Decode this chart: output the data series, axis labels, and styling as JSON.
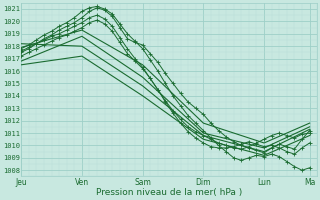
{
  "xlabel": "Pression niveau de la mer( hPa )",
  "bg_color": "#c8e8e0",
  "grid_major_color": "#9ecfc8",
  "grid_minor_color": "#b8ddd8",
  "line_color": "#1a6b30",
  "ylim": [
    1007.5,
    1021.5
  ],
  "yticks": [
    1008,
    1009,
    1010,
    1011,
    1012,
    1013,
    1014,
    1015,
    1016,
    1017,
    1018,
    1019,
    1020,
    1021
  ],
  "xtick_labels": [
    "Jeu",
    "Ven",
    "Sam",
    "Dim",
    "Lun",
    "Ma"
  ],
  "xtick_positions": [
    0,
    24,
    48,
    72,
    96,
    114
  ],
  "xlim": [
    0,
    117
  ],
  "series": [
    {
      "points": [
        [
          0,
          1017.5
        ],
        [
          3,
          1017.8
        ],
        [
          6,
          1018.2
        ],
        [
          9,
          1018.6
        ],
        [
          12,
          1018.9
        ],
        [
          15,
          1019.3
        ],
        [
          18,
          1019.6
        ],
        [
          21,
          1019.9
        ],
        [
          24,
          1020.3
        ],
        [
          27,
          1020.8
        ],
        [
          30,
          1021.1
        ],
        [
          33,
          1020.9
        ],
        [
          36,
          1020.4
        ],
        [
          39,
          1019.5
        ],
        [
          42,
          1018.6
        ],
        [
          45,
          1018.3
        ],
        [
          48,
          1018.1
        ],
        [
          51,
          1017.4
        ],
        [
          54,
          1016.7
        ],
        [
          57,
          1015.8
        ],
        [
          60,
          1015.0
        ],
        [
          63,
          1014.2
        ],
        [
          66,
          1013.5
        ],
        [
          69,
          1013.0
        ],
        [
          72,
          1012.5
        ],
        [
          75,
          1011.8
        ],
        [
          78,
          1011.2
        ],
        [
          81,
          1010.7
        ],
        [
          84,
          1010.3
        ],
        [
          87,
          1010.0
        ],
        [
          90,
          1009.8
        ],
        [
          93,
          1009.6
        ],
        [
          96,
          1009.4
        ],
        [
          99,
          1009.8
        ],
        [
          102,
          1010.1
        ],
        [
          105,
          1009.9
        ],
        [
          108,
          1009.7
        ],
        [
          111,
          1010.5
        ],
        [
          114,
          1011.2
        ]
      ],
      "marker": true
    },
    {
      "points": [
        [
          0,
          1017.8
        ],
        [
          3,
          1018.1
        ],
        [
          6,
          1018.5
        ],
        [
          9,
          1018.9
        ],
        [
          12,
          1019.2
        ],
        [
          15,
          1019.6
        ],
        [
          18,
          1019.9
        ],
        [
          21,
          1020.3
        ],
        [
          24,
          1020.8
        ],
        [
          27,
          1021.1
        ],
        [
          30,
          1021.2
        ],
        [
          33,
          1021.0
        ],
        [
          36,
          1020.6
        ],
        [
          39,
          1019.8
        ],
        [
          42,
          1019.0
        ],
        [
          45,
          1018.4
        ],
        [
          48,
          1017.8
        ],
        [
          51,
          1016.9
        ],
        [
          54,
          1016.0
        ],
        [
          57,
          1015.0
        ],
        [
          60,
          1014.0
        ],
        [
          63,
          1013.2
        ],
        [
          66,
          1012.4
        ],
        [
          69,
          1011.8
        ],
        [
          72,
          1011.2
        ],
        [
          75,
          1010.6
        ],
        [
          78,
          1010.0
        ],
        [
          81,
          1009.5
        ],
        [
          84,
          1009.0
        ],
        [
          87,
          1008.8
        ],
        [
          90,
          1009.0
        ],
        [
          93,
          1009.2
        ],
        [
          96,
          1009.1
        ],
        [
          99,
          1009.3
        ],
        [
          102,
          1009.1
        ],
        [
          105,
          1008.7
        ],
        [
          108,
          1008.3
        ],
        [
          111,
          1008.0
        ],
        [
          114,
          1008.2
        ]
      ],
      "marker": true
    },
    {
      "points": [
        [
          0,
          1017.2
        ],
        [
          3,
          1017.5
        ],
        [
          6,
          1017.8
        ],
        [
          9,
          1018.1
        ],
        [
          12,
          1018.4
        ],
        [
          15,
          1018.7
        ],
        [
          18,
          1018.9
        ],
        [
          21,
          1019.2
        ],
        [
          24,
          1019.5
        ],
        [
          27,
          1019.9
        ],
        [
          30,
          1020.1
        ],
        [
          33,
          1019.8
        ],
        [
          36,
          1019.2
        ],
        [
          39,
          1018.3
        ],
        [
          42,
          1017.4
        ],
        [
          45,
          1016.8
        ],
        [
          48,
          1016.2
        ],
        [
          51,
          1015.4
        ],
        [
          54,
          1014.5
        ],
        [
          57,
          1013.6
        ],
        [
          60,
          1012.8
        ],
        [
          63,
          1012.1
        ],
        [
          66,
          1011.5
        ],
        [
          69,
          1011.1
        ],
        [
          72,
          1010.8
        ],
        [
          75,
          1010.5
        ],
        [
          78,
          1010.2
        ],
        [
          81,
          1010.0
        ],
        [
          84,
          1009.8
        ],
        [
          87,
          1009.7
        ],
        [
          90,
          1009.9
        ],
        [
          93,
          1010.2
        ],
        [
          96,
          1010.5
        ],
        [
          99,
          1010.8
        ],
        [
          102,
          1011.0
        ],
        [
          105,
          1010.8
        ],
        [
          108,
          1010.6
        ],
        [
          111,
          1010.9
        ],
        [
          114,
          1011.0
        ]
      ],
      "marker": true
    },
    {
      "points": [
        [
          0,
          1017.6
        ],
        [
          3,
          1017.9
        ],
        [
          6,
          1018.2
        ],
        [
          9,
          1018.5
        ],
        [
          12,
          1018.8
        ],
        [
          15,
          1019.0
        ],
        [
          18,
          1019.3
        ],
        [
          21,
          1019.6
        ],
        [
          24,
          1019.9
        ],
        [
          27,
          1020.3
        ],
        [
          30,
          1020.5
        ],
        [
          33,
          1020.2
        ],
        [
          36,
          1019.6
        ],
        [
          39,
          1018.7
        ],
        [
          42,
          1017.8
        ],
        [
          45,
          1017.0
        ],
        [
          48,
          1016.3
        ],
        [
          51,
          1015.4
        ],
        [
          54,
          1014.5
        ],
        [
          57,
          1013.5
        ],
        [
          60,
          1012.6
        ],
        [
          63,
          1011.8
        ],
        [
          66,
          1011.1
        ],
        [
          69,
          1010.6
        ],
        [
          72,
          1010.2
        ],
        [
          75,
          1009.9
        ],
        [
          78,
          1009.8
        ],
        [
          81,
          1009.8
        ],
        [
          84,
          1009.9
        ],
        [
          87,
          1010.1
        ],
        [
          90,
          1010.3
        ],
        [
          93,
          1010.1
        ],
        [
          96,
          1009.9
        ],
        [
          99,
          1010.0
        ],
        [
          102,
          1009.8
        ],
        [
          105,
          1009.5
        ],
        [
          108,
          1009.3
        ],
        [
          111,
          1009.8
        ],
        [
          114,
          1010.2
        ]
      ],
      "marker": true
    },
    {
      "points": [
        [
          0,
          1016.8
        ],
        [
          24,
          1018.8
        ],
        [
          48,
          1015.5
        ],
        [
          72,
          1011.0
        ],
        [
          96,
          1009.8
        ],
        [
          114,
          1011.5
        ]
      ],
      "marker": false
    },
    {
      "points": [
        [
          0,
          1017.9
        ],
        [
          24,
          1019.3
        ],
        [
          48,
          1016.5
        ],
        [
          72,
          1011.8
        ],
        [
          96,
          1010.2
        ],
        [
          114,
          1011.8
        ]
      ],
      "marker": false
    },
    {
      "points": [
        [
          0,
          1018.2
        ],
        [
          24,
          1018.0
        ],
        [
          48,
          1014.8
        ],
        [
          72,
          1010.8
        ],
        [
          96,
          1009.5
        ],
        [
          114,
          1011.3
        ]
      ],
      "marker": false
    },
    {
      "points": [
        [
          0,
          1016.5
        ],
        [
          24,
          1017.2
        ],
        [
          48,
          1014.0
        ],
        [
          72,
          1010.5
        ],
        [
          96,
          1009.2
        ],
        [
          114,
          1010.8
        ]
      ],
      "marker": false
    }
  ]
}
